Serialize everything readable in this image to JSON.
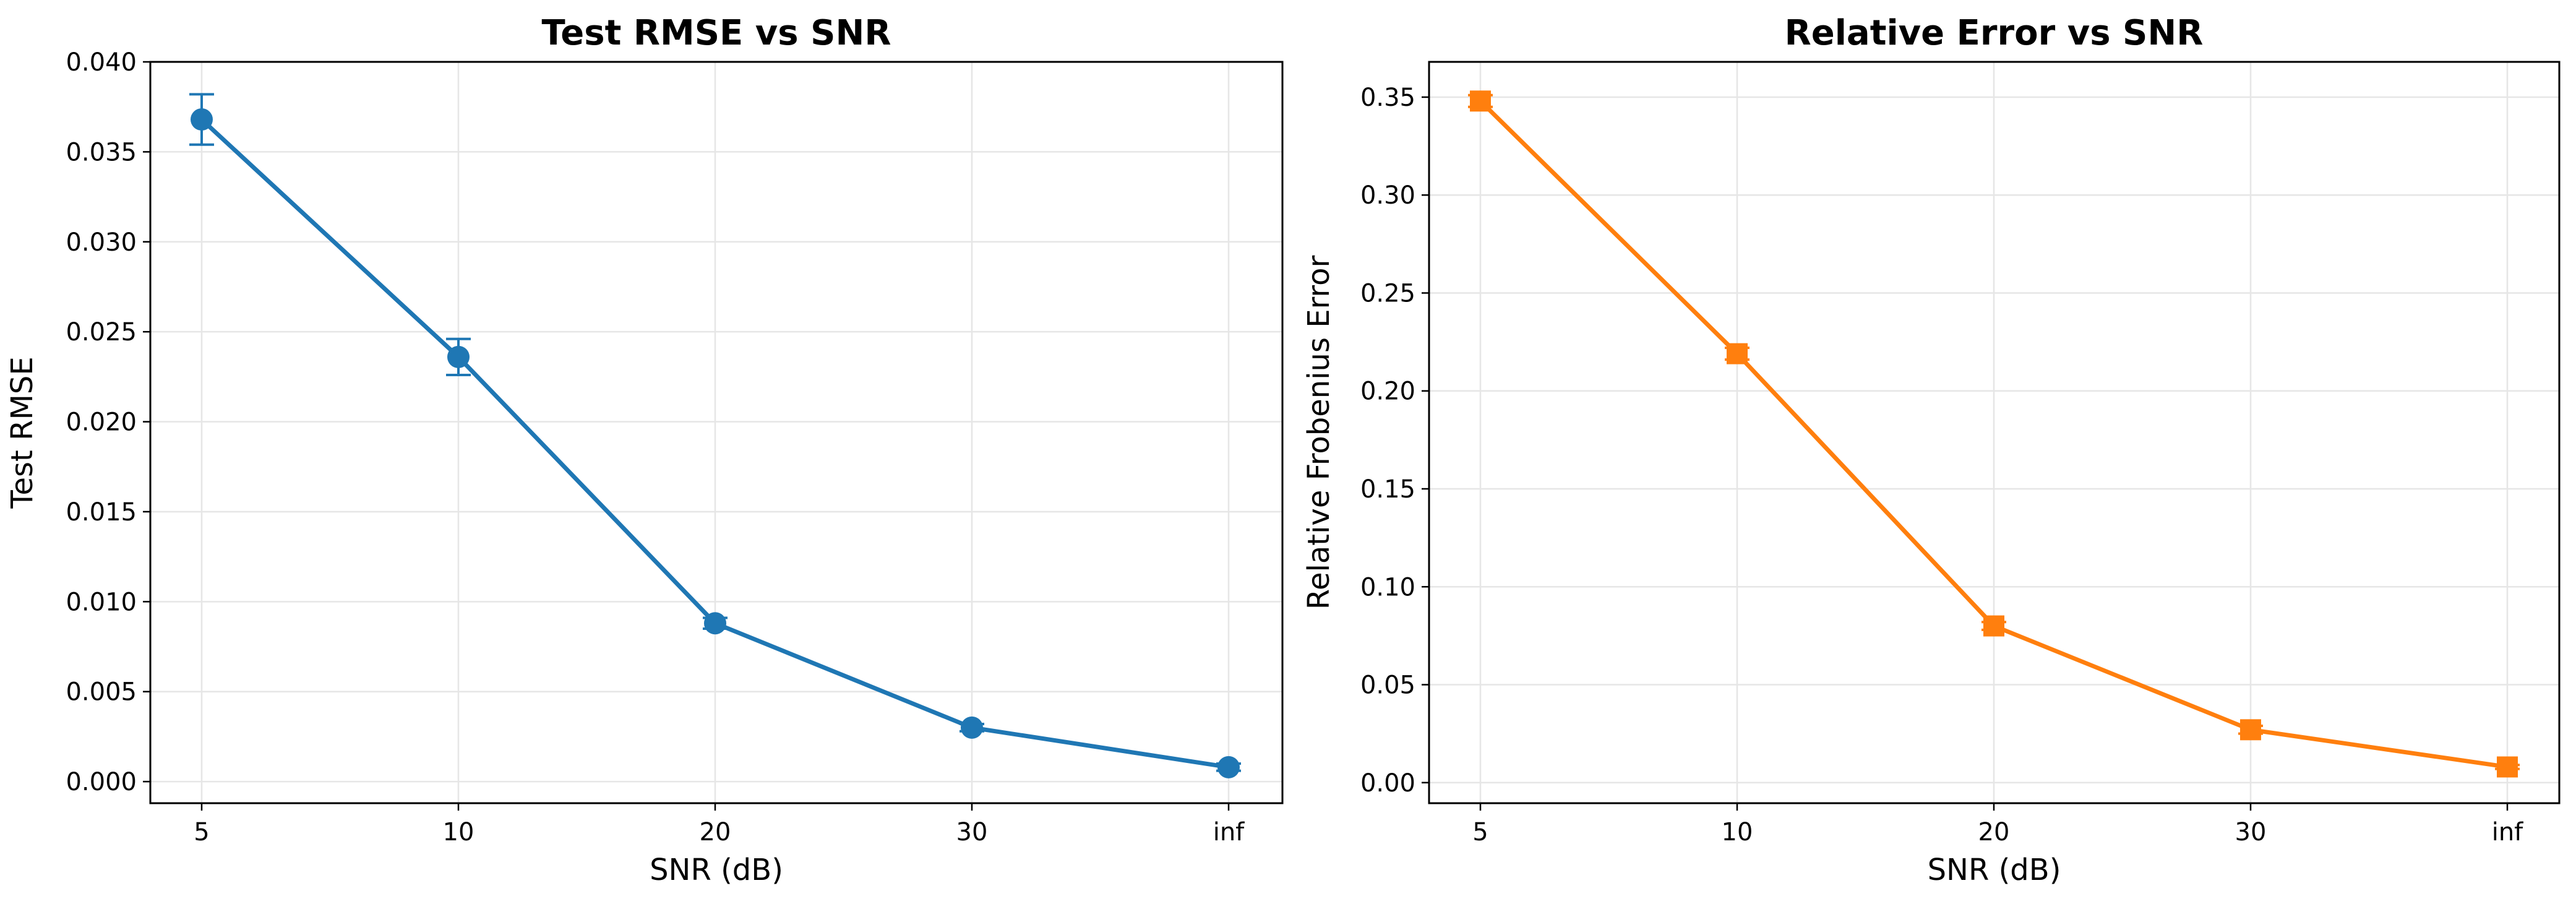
{
  "chart_data": [
    {
      "type": "line",
      "title": "Test RMSE vs SNR",
      "xlabel": "SNR (dB)",
      "ylabel": "Test RMSE",
      "categories": [
        "5",
        "10",
        "20",
        "30",
        "inf"
      ],
      "ylim": [
        -0.0012,
        0.04
      ],
      "yticks": [
        "0.000",
        "0.005",
        "0.010",
        "0.015",
        "0.020",
        "0.025",
        "0.030",
        "0.035",
        "0.040"
      ],
      "grid": true,
      "marker": "circle",
      "color": "#1f77b4",
      "series": [
        {
          "values": [
            0.0368,
            0.0236,
            0.0088,
            0.003,
            0.0008
          ],
          "errors": [
            0.0014,
            0.001,
            0.0003,
            0.0002,
            0.0002
          ]
        }
      ]
    },
    {
      "type": "line",
      "title": "Relative Error vs SNR",
      "xlabel": "SNR (dB)",
      "ylabel": "Relative Frobenius Error",
      "categories": [
        "5",
        "10",
        "20",
        "30",
        "inf"
      ],
      "ylim": [
        -0.0105,
        0.368
      ],
      "yticks": [
        "0.00",
        "0.05",
        "0.10",
        "0.15",
        "0.20",
        "0.25",
        "0.30",
        "0.35"
      ],
      "grid": true,
      "marker": "square",
      "color": "#ff7f0e",
      "series": [
        {
          "values": [
            0.348,
            0.219,
            0.08,
            0.027,
            0.008
          ],
          "errors": [
            0.003,
            0.003,
            0.002,
            0.002,
            0.001
          ]
        }
      ]
    }
  ]
}
